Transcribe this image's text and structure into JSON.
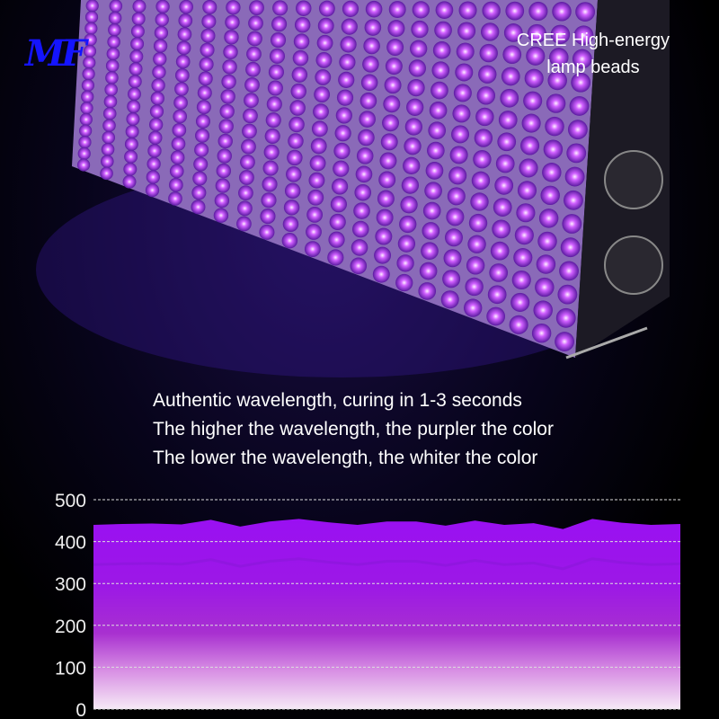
{
  "logo": {
    "text": "MF"
  },
  "headline": {
    "line1": "CREE High-energy",
    "line2": "lamp beads"
  },
  "description": [
    "Authentic wavelength, curing in 1-3 seconds",
    "The higher the wavelength, the purpler the color",
    "The lower the wavelength, the whiter the color"
  ],
  "colors": {
    "uv_purple": "#9b10f0",
    "led_glow": "#d060ff",
    "logo_blue": "#1414ff"
  },
  "chart_data": {
    "type": "area",
    "ylim": [
      0,
      500
    ],
    "yticks": [
      "0",
      "100",
      "200",
      "300",
      "400",
      "500"
    ],
    "grid": true,
    "x": [
      0,
      5,
      10,
      15,
      20,
      25,
      30,
      35,
      40,
      45,
      50,
      55,
      60,
      65,
      70,
      75,
      80,
      85,
      90,
      95,
      100
    ],
    "values": [
      440,
      442,
      443,
      441,
      452,
      436,
      448,
      454,
      446,
      440,
      448,
      448,
      438,
      450,
      440,
      444,
      430,
      454,
      445,
      440,
      442
    ]
  }
}
